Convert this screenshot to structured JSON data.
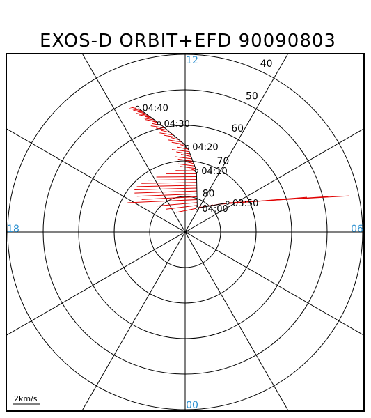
{
  "title": "EXOS-D ORBIT+EFD 90090803",
  "colors": {
    "mlt_label": "#2a8fd0",
    "vector": "#e00000",
    "grid": "#000000"
  },
  "plot": {
    "center_latitude": 90,
    "outer_latitude": 40,
    "lat_circles": [
      80,
      70,
      60,
      50,
      40
    ],
    "lat_labels": [
      "80",
      "70",
      "60",
      "50",
      "40"
    ],
    "mlt_labels": {
      "top": "12",
      "left": "18",
      "right": "06",
      "bottom": "00"
    },
    "scale_label": "2km/s"
  },
  "orbit": {
    "times": [
      "03:50",
      "04:00",
      "04:10",
      "04:20",
      "04:30",
      "04:40"
    ],
    "positions": [
      {
        "time": "03:50",
        "mlt": 8.3,
        "lat": 75.5
      },
      {
        "time": "04:00",
        "mlt": 10.2,
        "lat": 82.5
      },
      {
        "time": "04:10",
        "mlt": 11.3,
        "lat": 72.5
      },
      {
        "time": "04:20",
        "mlt": 11.9,
        "lat": 66.0
      },
      {
        "time": "04:30",
        "mlt": 12.9,
        "lat": 58.5
      },
      {
        "time": "04:40",
        "mlt": 13.4,
        "lat": 52.5
      }
    ]
  }
}
